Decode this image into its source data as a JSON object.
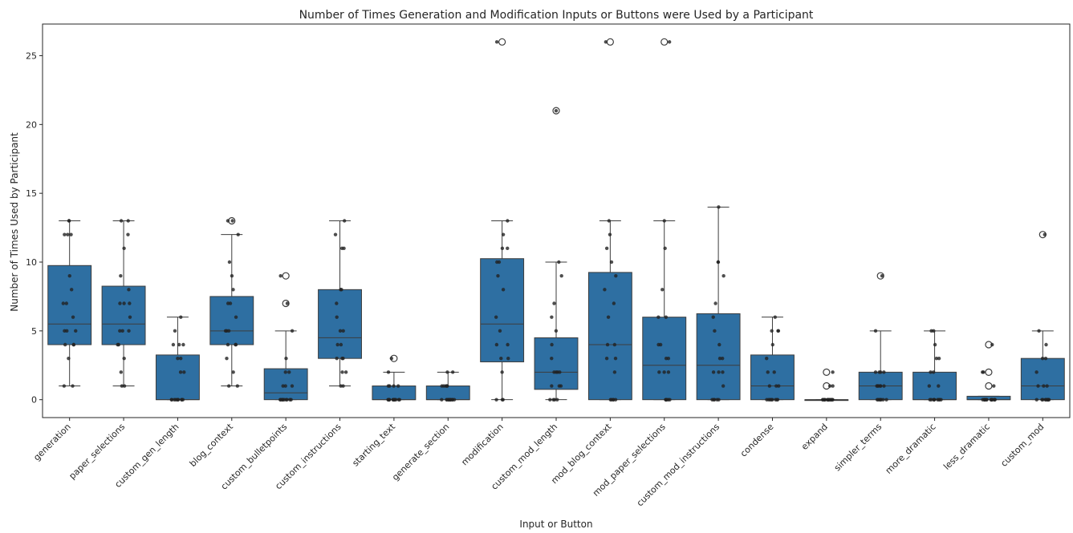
{
  "chart_data": {
    "type": "boxplot",
    "title": "Number of Times Generation and Modification Inputs or Buttons were Used by a Participant",
    "xlabel": "Input or Button",
    "ylabel": "Number of Times Used by Participant",
    "ylim": [
      -1.3,
      27.3
    ],
    "yticks": [
      0,
      5,
      10,
      15,
      20,
      25
    ],
    "grid": false,
    "legend": "none",
    "box_color": "#2e6fa2",
    "point_color": "#222222",
    "categories": [
      "generation",
      "paper_selections",
      "custom_gen_length",
      "blog_context",
      "custom_bulletpoints",
      "custom_instructions",
      "starting_text",
      "generate_section",
      "modification",
      "custom_mod_length",
      "mod_blog_context",
      "mod_paper_selections",
      "custom_mod_instructions",
      "condense",
      "expand",
      "simpler_terms",
      "more_dramatic",
      "less_dramatic",
      "custom_mod"
    ],
    "stats": [
      {
        "q1": 4,
        "median": 5.5,
        "q3": 9.75,
        "whisker_low": 1,
        "whisker_high": 13,
        "outliers": []
      },
      {
        "q1": 4,
        "median": 5.5,
        "q3": 8.25,
        "whisker_low": 1,
        "whisker_high": 13,
        "outliers": []
      },
      {
        "q1": 0,
        "median": 0,
        "q3": 3.25,
        "whisker_low": 0,
        "whisker_high": 6,
        "outliers": []
      },
      {
        "q1": 4,
        "median": 5,
        "q3": 7.5,
        "whisker_low": 1,
        "whisker_high": 12,
        "outliers": [
          13
        ]
      },
      {
        "q1": 0,
        "median": 0.5,
        "q3": 2.25,
        "whisker_low": 0,
        "whisker_high": 5,
        "outliers": [
          7,
          9
        ]
      },
      {
        "q1": 3,
        "median": 4.5,
        "q3": 8,
        "whisker_low": 1,
        "whisker_high": 13,
        "outliers": []
      },
      {
        "q1": 0,
        "median": 0,
        "q3": 1,
        "whisker_low": 0,
        "whisker_high": 2,
        "outliers": [
          3
        ]
      },
      {
        "q1": 0,
        "median": 0,
        "q3": 1,
        "whisker_low": 0,
        "whisker_high": 2,
        "outliers": []
      },
      {
        "q1": 2.75,
        "median": 5.5,
        "q3": 10.25,
        "whisker_low": 0,
        "whisker_high": 13,
        "outliers": [
          26
        ]
      },
      {
        "q1": 0.75,
        "median": 2,
        "q3": 4.5,
        "whisker_low": 0,
        "whisker_high": 10,
        "outliers": [
          21
        ]
      },
      {
        "q1": 0,
        "median": 4,
        "q3": 9.25,
        "whisker_low": 0,
        "whisker_high": 13,
        "outliers": [
          26
        ]
      },
      {
        "q1": 0,
        "median": 2.5,
        "q3": 6,
        "whisker_low": 0,
        "whisker_high": 13,
        "outliers": [
          26
        ]
      },
      {
        "q1": 0,
        "median": 2.5,
        "q3": 6.25,
        "whisker_low": 0,
        "whisker_high": 14,
        "outliers": []
      },
      {
        "q1": 0,
        "median": 1,
        "q3": 3.25,
        "whisker_low": 0,
        "whisker_high": 6,
        "outliers": []
      },
      {
        "q1": 0,
        "median": 0,
        "q3": 0,
        "whisker_low": 0,
        "whisker_high": 0,
        "outliers": [
          1,
          2
        ]
      },
      {
        "q1": 0,
        "median": 1,
        "q3": 2,
        "whisker_low": 0,
        "whisker_high": 5,
        "outliers": [
          9
        ]
      },
      {
        "q1": 0,
        "median": 0,
        "q3": 2,
        "whisker_low": 0,
        "whisker_high": 5,
        "outliers": []
      },
      {
        "q1": 0,
        "median": 0,
        "q3": 0.25,
        "whisker_low": 0,
        "whisker_high": 0.25,
        "outliers": [
          1,
          2,
          4
        ]
      },
      {
        "q1": 0,
        "median": 1,
        "q3": 3,
        "whisker_low": 0,
        "whisker_high": 5,
        "outliers": [
          12
        ]
      }
    ],
    "points": [
      [
        1,
        1,
        3,
        4,
        4,
        4,
        5,
        5,
        5,
        6,
        7,
        7,
        8,
        9,
        12,
        12,
        12,
        13,
        13
      ],
      [
        1,
        1,
        2,
        3,
        4,
        4,
        5,
        5,
        5,
        6,
        7,
        7,
        7,
        8,
        9,
        11,
        12,
        13,
        13
      ],
      [
        0,
        0,
        0,
        0,
        0,
        0,
        0,
        0,
        0,
        0,
        2,
        2,
        3,
        3,
        4,
        4,
        4,
        5,
        6
      ],
      [
        1,
        1,
        2,
        3,
        4,
        4,
        4,
        5,
        5,
        5,
        6,
        7,
        7,
        8,
        9,
        10,
        12,
        13,
        13
      ],
      [
        0,
        0,
        0,
        0,
        0,
        0,
        0,
        0,
        0,
        0,
        1,
        1,
        1,
        2,
        2,
        3,
        5,
        7,
        9
      ],
      [
        1,
        1,
        2,
        2,
        3,
        3,
        3,
        4,
        4,
        5,
        5,
        6,
        7,
        8,
        8,
        11,
        11,
        12,
        13
      ],
      [
        0,
        0,
        0,
        0,
        0,
        0,
        0,
        0,
        0,
        0,
        0,
        0,
        0,
        1,
        1,
        1,
        1,
        2,
        3
      ],
      [
        0,
        0,
        0,
        0,
        0,
        0,
        0,
        0,
        0,
        0,
        0,
        0,
        1,
        1,
        1,
        1,
        1,
        2,
        2
      ],
      [
        0,
        0,
        0,
        2,
        3,
        3,
        4,
        4,
        5,
        6,
        8,
        9,
        10,
        10,
        11,
        11,
        12,
        13,
        26
      ],
      [
        0,
        0,
        0,
        0,
        1,
        1,
        1,
        2,
        2,
        2,
        2,
        3,
        4,
        5,
        6,
        7,
        9,
        10,
        21
      ],
      [
        0,
        0,
        0,
        0,
        0,
        2,
        3,
        3,
        4,
        4,
        6,
        7,
        8,
        9,
        10,
        11,
        12,
        13,
        26
      ],
      [
        0,
        0,
        0,
        0,
        0,
        0,
        2,
        2,
        2,
        3,
        3,
        4,
        4,
        6,
        6,
        8,
        11,
        13,
        26
      ],
      [
        0,
        0,
        0,
        0,
        0,
        1,
        2,
        2,
        2,
        3,
        3,
        4,
        5,
        6,
        7,
        9,
        10,
        10,
        14
      ],
      [
        0,
        0,
        0,
        0,
        0,
        0,
        0,
        0,
        1,
        1,
        1,
        2,
        2,
        3,
        4,
        5,
        5,
        5,
        6
      ],
      [
        0,
        0,
        0,
        0,
        0,
        0,
        0,
        0,
        0,
        0,
        0,
        0,
        0,
        0,
        0,
        0,
        1,
        1,
        2
      ],
      [
        0,
        0,
        0,
        0,
        0,
        0,
        0,
        1,
        1,
        1,
        1,
        1,
        1,
        2,
        2,
        2,
        2,
        5,
        9
      ],
      [
        0,
        0,
        0,
        0,
        0,
        0,
        0,
        0,
        0,
        0,
        1,
        1,
        2,
        2,
        3,
        3,
        4,
        5,
        5
      ],
      [
        0,
        0,
        0,
        0,
        0,
        0,
        0,
        0,
        0,
        0,
        0,
        0,
        0,
        0,
        0,
        1,
        2,
        2,
        4
      ],
      [
        0,
        0,
        0,
        0,
        0,
        0,
        0,
        0,
        0,
        0,
        1,
        1,
        1,
        2,
        3,
        3,
        4,
        5,
        12
      ]
    ]
  }
}
